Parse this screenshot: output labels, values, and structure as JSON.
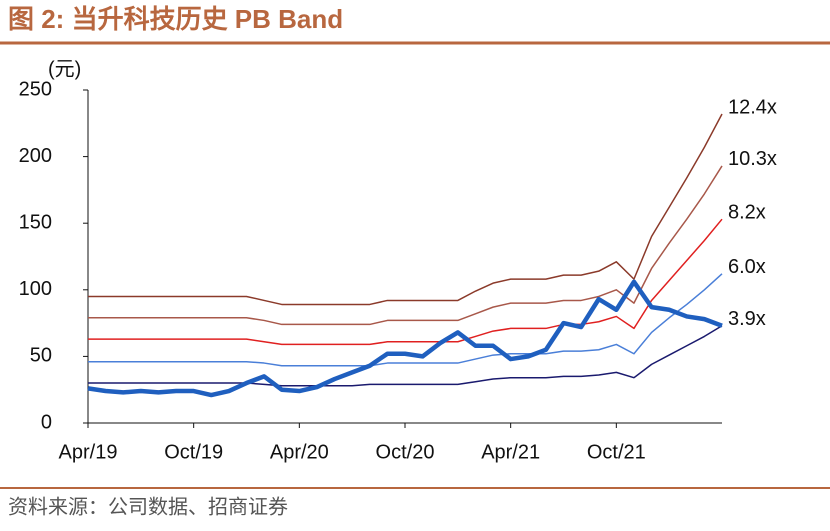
{
  "chart_data": {
    "type": "line",
    "title": "图 2:  当升科技历史 PB Band",
    "y_label": "(元)",
    "source": "资料来源：公司数据、招商证券",
    "categories": [
      "Apr/19",
      null,
      null,
      null,
      null,
      null,
      "Oct/19",
      null,
      null,
      null,
      null,
      null,
      "Apr/20",
      null,
      null,
      null,
      null,
      null,
      "Oct/20",
      null,
      null,
      null,
      null,
      null,
      "Apr/21",
      null,
      null,
      null,
      null,
      null,
      "Oct/21",
      null,
      null,
      null,
      null,
      null,
      null
    ],
    "ylim": [
      0,
      250
    ],
    "yticks": [
      0,
      50,
      100,
      150,
      200,
      250
    ],
    "series": [
      {
        "color": "#1f5fbf",
        "values": [
          26,
          24,
          23,
          24,
          23,
          24,
          24,
          21,
          24,
          30,
          35,
          25,
          24,
          27,
          33,
          38,
          43,
          52,
          52,
          50,
          60,
          68,
          58,
          58,
          48,
          50,
          55,
          75,
          72,
          93,
          85,
          106,
          87,
          85,
          80,
          78,
          73
        ]
      },
      {
        "name": "12.4x",
        "color": "#8b3a2a",
        "values": [
          95,
          95,
          95,
          95,
          95,
          95,
          95,
          95,
          95,
          95,
          92,
          89,
          89,
          89,
          89,
          89,
          89,
          92,
          92,
          92,
          92,
          92,
          99,
          105,
          108,
          108,
          108,
          111,
          111,
          114,
          121,
          108,
          140,
          162,
          184,
          207,
          232
        ]
      },
      {
        "name": "10.3x",
        "color": "#a8584a",
        "values": [
          79,
          79,
          79,
          79,
          79,
          79,
          79,
          79,
          79,
          79,
          77,
          74,
          74,
          74,
          74,
          74,
          74,
          77,
          77,
          77,
          77,
          77,
          82,
          87,
          90,
          90,
          90,
          92,
          92,
          95,
          100,
          90,
          116,
          135,
          153,
          172,
          193
        ]
      },
      {
        "name": "8.2x",
        "color": "#e02020",
        "values": [
          63,
          63,
          63,
          63,
          63,
          63,
          63,
          63,
          63,
          63,
          61,
          59,
          59,
          59,
          59,
          59,
          59,
          61,
          61,
          61,
          61,
          61,
          65,
          69,
          71,
          71,
          71,
          74,
          74,
          76,
          80,
          71,
          92,
          107,
          122,
          137,
          153
        ]
      },
      {
        "name": "6.0x",
        "color": "#4a7fd8",
        "values": [
          46,
          46,
          46,
          46,
          46,
          46,
          46,
          46,
          46,
          46,
          45,
          43,
          43,
          43,
          43,
          43,
          43,
          45,
          45,
          45,
          45,
          45,
          48,
          51,
          52,
          52,
          52,
          54,
          54,
          55,
          59,
          52,
          68,
          79,
          89,
          100,
          112
        ]
      },
      {
        "name": "3.9x",
        "color": "#1a1a6e",
        "values": [
          30,
          30,
          30,
          30,
          30,
          30,
          30,
          30,
          30,
          30,
          29,
          28,
          28,
          28,
          28,
          28,
          29,
          29,
          29,
          29,
          29,
          29,
          31,
          33,
          34,
          34,
          34,
          35,
          35,
          36,
          38,
          34,
          44,
          51,
          58,
          65,
          73
        ]
      }
    ]
  }
}
